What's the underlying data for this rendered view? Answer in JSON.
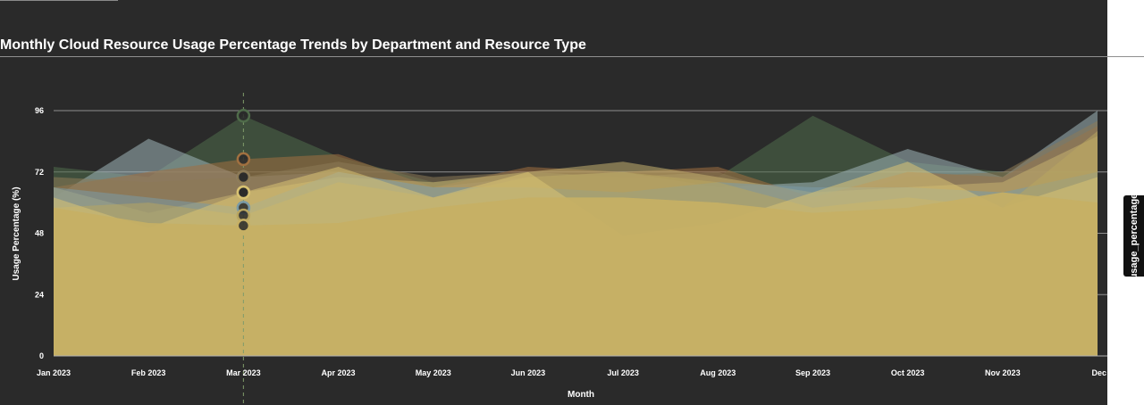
{
  "window": {
    "title": "Monthly Cloud Resource Usage Percentage Trends by Department and Resource Type",
    "legend_tab_label": "usage_percentage"
  },
  "colors": {
    "background": "#2a2a2a",
    "text": "#ffffff",
    "gridline": "#8f8f8f",
    "crosshair": "#7f9b6a"
  },
  "chart_data": {
    "type": "area",
    "xlabel": "Month",
    "ylabel": "Usage Percentage (%)",
    "ylim": [
      0,
      96
    ],
    "y_ticks": [
      0,
      24,
      48,
      72,
      96
    ],
    "grid": "y",
    "categories": [
      "Jan 2023",
      "Feb 2023",
      "Mar 2023",
      "Apr 2023",
      "May 2023",
      "Jun 2023",
      "Jul 2023",
      "Aug 2023",
      "Sep 2023",
      "Oct 2023",
      "Nov 2023",
      "Dec"
    ],
    "hover_category": "Mar 2023",
    "series": [
      {
        "color": "#4f6b4a",
        "values": [
          74,
          70,
          94,
          78,
          68,
          72,
          70,
          70,
          94,
          76,
          72,
          72
        ]
      },
      {
        "color": "#9fb5b8",
        "values": [
          62,
          85,
          70,
          72,
          66,
          70,
          72,
          66,
          68,
          81,
          70,
          96
        ]
      },
      {
        "color": "#a07040",
        "values": [
          66,
          72,
          77,
          79,
          66,
          74,
          72,
          74,
          62,
          72,
          70,
          90
        ]
      },
      {
        "color": "#8d7a55",
        "values": [
          70,
          68,
          70,
          76,
          70,
          72,
          70,
          72,
          60,
          70,
          72,
          92
        ]
      },
      {
        "color": "#c4b070",
        "values": [
          66,
          56,
          64,
          70,
          68,
          72,
          76,
          70,
          64,
          66,
          68,
          86
        ]
      },
      {
        "color": "#7a9aa6",
        "values": [
          66,
          62,
          58,
          72,
          66,
          66,
          64,
          68,
          66,
          66,
          64,
          72
        ]
      },
      {
        "color": "#b8a560",
        "values": [
          58,
          60,
          55,
          68,
          62,
          70,
          72,
          68,
          58,
          62,
          58,
          88
        ]
      },
      {
        "color": "#d8c272",
        "values": [
          62,
          50,
          64,
          74,
          62,
          72,
          47,
          52,
          64,
          76,
          58,
          70
        ]
      },
      {
        "color": "#c7b064",
        "values": [
          58,
          52,
          51,
          52,
          58,
          62,
          62,
          60,
          56,
          58,
          64,
          60
        ]
      }
    ]
  }
}
